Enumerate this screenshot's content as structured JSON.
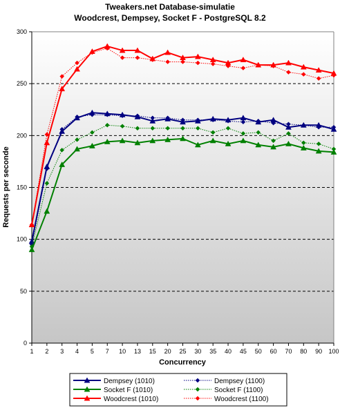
{
  "chart_data": {
    "type": "line",
    "title": "Tweakers.net Database-simulatie",
    "subtitle": "Woodcrest, Dempsey, Socket F - PostgreSQL 8.2",
    "xlabel": "Concurrency",
    "ylabel": "Requests per seconde",
    "ylim": [
      0,
      300
    ],
    "yticks": [
      0,
      50,
      100,
      150,
      200,
      250,
      300
    ],
    "grid": "horizontal dashed",
    "legend_position": "bottom",
    "categories": [
      "1",
      "2",
      "3",
      "4",
      "5",
      "7",
      "10",
      "13",
      "15",
      "20",
      "25",
      "30",
      "35",
      "40",
      "45",
      "50",
      "60",
      "70",
      "80",
      "90",
      "100"
    ],
    "series": [
      {
        "name": "Dempsey (1010)",
        "color": "#000080",
        "marker": "triangle",
        "values": [
          98,
          170,
          204,
          217,
          222,
          221,
          220,
          218,
          214,
          216,
          213,
          214,
          216,
          215,
          217,
          213,
          215,
          208,
          210,
          210,
          206
        ]
      },
      {
        "name": "Dempsey (1100)",
        "color": "#000080",
        "marker": "diamond",
        "values": [
          95,
          168,
          206,
          218,
          220,
          220,
          219,
          219,
          217,
          217,
          215,
          215,
          215,
          214,
          213,
          214,
          212,
          211,
          210,
          208,
          208
        ]
      },
      {
        "name": "Socket F (1010)",
        "color": "#008000",
        "marker": "triangle",
        "values": [
          90,
          127,
          172,
          187,
          190,
          194,
          195,
          193,
          195,
          196,
          197,
          191,
          195,
          192,
          195,
          191,
          189,
          192,
          188,
          185,
          184
        ]
      },
      {
        "name": "Socket F (1100)",
        "color": "#008000",
        "marker": "diamond",
        "values": [
          93,
          154,
          186,
          196,
          203,
          210,
          209,
          207,
          207,
          207,
          207,
          207,
          203,
          207,
          202,
          203,
          195,
          202,
          193,
          192,
          187
        ]
      },
      {
        "name": "Woodcrest (1010)",
        "color": "#ff0000",
        "marker": "triangle",
        "values": [
          114,
          193,
          245,
          264,
          281,
          286,
          282,
          282,
          274,
          280,
          275,
          276,
          273,
          270,
          273,
          268,
          268,
          270,
          266,
          263,
          260
        ]
      },
      {
        "name": "Woodcrest (1100)",
        "color": "#ff0000",
        "marker": "diamond",
        "values": [
          114,
          201,
          257,
          270,
          280,
          284,
          275,
          275,
          273,
          271,
          271,
          270,
          269,
          267,
          265,
          268,
          267,
          261,
          259,
          255,
          258
        ]
      }
    ]
  }
}
